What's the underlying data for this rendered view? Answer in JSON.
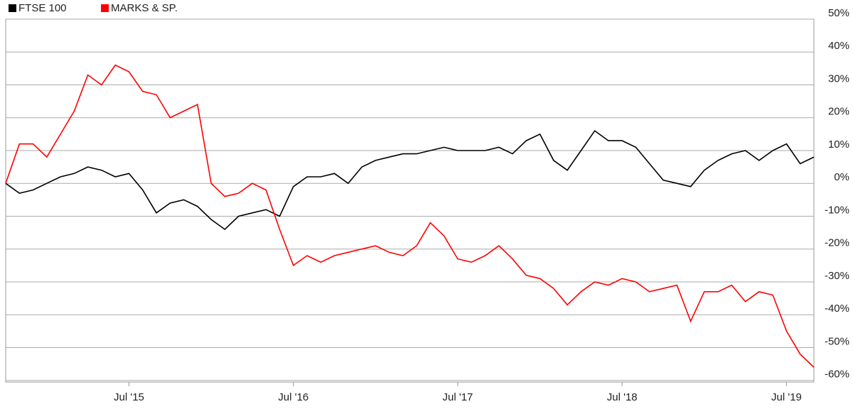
{
  "chart_data": {
    "type": "line",
    "x": [
      "2014-10",
      "2014-11",
      "2014-12",
      "2015-01",
      "2015-02",
      "2015-03",
      "2015-04",
      "2015-05",
      "2015-06",
      "2015-07",
      "2015-08",
      "2015-09",
      "2015-10",
      "2015-11",
      "2015-12",
      "2016-01",
      "2016-02",
      "2016-03",
      "2016-04",
      "2016-05",
      "2016-06",
      "2016-07",
      "2016-08",
      "2016-09",
      "2016-10",
      "2016-11",
      "2016-12",
      "2017-01",
      "2017-02",
      "2017-03",
      "2017-04",
      "2017-05",
      "2017-06",
      "2017-07",
      "2017-08",
      "2017-09",
      "2017-10",
      "2017-11",
      "2017-12",
      "2018-01",
      "2018-02",
      "2018-03",
      "2018-04",
      "2018-05",
      "2018-06",
      "2018-07",
      "2018-08",
      "2018-09",
      "2018-10",
      "2018-11",
      "2018-12",
      "2019-01",
      "2019-02",
      "2019-03",
      "2019-04",
      "2019-05",
      "2019-06",
      "2019-07",
      "2019-08",
      "2019-09"
    ],
    "series": [
      {
        "name": "FTSE 100",
        "color": "#000000",
        "values": [
          0,
          -3,
          -2,
          0,
          2,
          3,
          5,
          4,
          2,
          3,
          -2,
          -9,
          -6,
          -5,
          -7,
          -11,
          -14,
          -10,
          -9,
          -8,
          -10,
          -1,
          2,
          2,
          3,
          0,
          5,
          7,
          8,
          9,
          9,
          10,
          11,
          10,
          10,
          10,
          11,
          9,
          13,
          15,
          7,
          4,
          10,
          16,
          13,
          13,
          11,
          6,
          1,
          0,
          -1,
          4,
          7,
          9,
          10,
          7,
          10,
          12,
          6,
          8
        ]
      },
      {
        "name": "MARKS & SP.",
        "color": "#ff0000",
        "values": [
          0,
          12,
          12,
          8,
          15,
          22,
          33,
          30,
          36,
          34,
          28,
          27,
          20,
          22,
          24,
          0,
          -4,
          -3,
          0,
          -2,
          -14,
          -25,
          -22,
          -24,
          -22,
          -21,
          -20,
          -19,
          -21,
          -22,
          -19,
          -12,
          -16,
          -23,
          -24,
          -22,
          -19,
          -23,
          -28,
          -29,
          -32,
          -37,
          -33,
          -30,
          -31,
          -29,
          -30,
          -33,
          -32,
          -31,
          -42,
          -33,
          -33,
          -31,
          -36,
          -33,
          -34,
          -45,
          -52,
          -56
        ]
      }
    ],
    "xlim": [
      "2014-10",
      "2019-09"
    ],
    "xticks": [
      {
        "value": "2015-07",
        "label": "Jul '15"
      },
      {
        "value": "2016-07",
        "label": "Jul '16"
      },
      {
        "value": "2017-07",
        "label": "Jul '17"
      },
      {
        "value": "2018-07",
        "label": "Jul '18"
      },
      {
        "value": "2019-07",
        "label": "Jul '19"
      }
    ],
    "ylim": [
      -60.5,
      50
    ],
    "yticks": [
      {
        "value": 50,
        "label": "50%"
      },
      {
        "value": 40,
        "label": "40%"
      },
      {
        "value": 30,
        "label": "30%"
      },
      {
        "value": 20,
        "label": "20%"
      },
      {
        "value": 10,
        "label": "10%"
      },
      {
        "value": 0,
        "label": "0%"
      },
      {
        "value": -10,
        "label": "-10%"
      },
      {
        "value": -20,
        "label": "-20%"
      },
      {
        "value": -30,
        "label": "-30%"
      },
      {
        "value": -40,
        "label": "-40%"
      },
      {
        "value": -50,
        "label": "-50%"
      },
      {
        "value": -60,
        "label": "-60%"
      }
    ],
    "grid": true,
    "legend": "top-left"
  }
}
